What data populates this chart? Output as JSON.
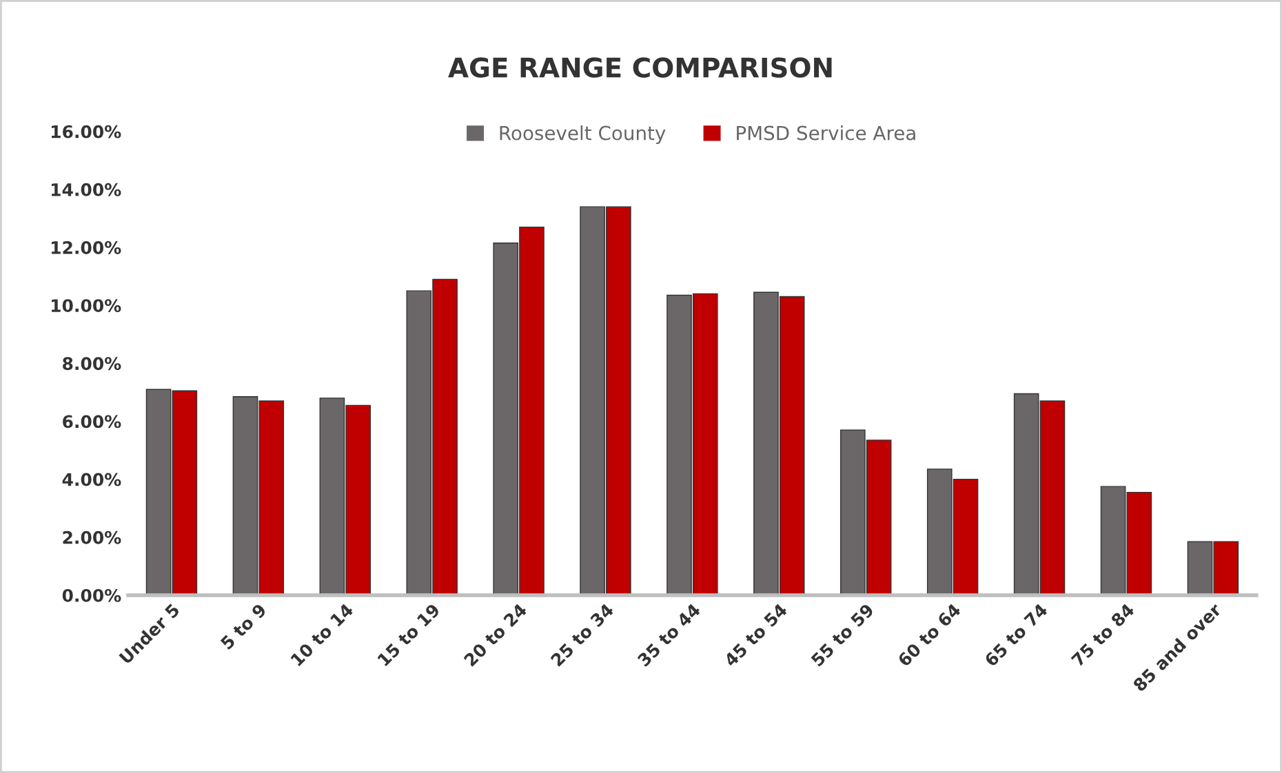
{
  "chart_data": {
    "type": "bar",
    "title": "AGE RANGE COMPARISON",
    "categories": [
      "Under 5",
      "5 to 9",
      "10 to 14",
      "15 to 19",
      "20 to 24",
      "25 to 34",
      "35 to 44",
      "45 to 54",
      "55 to 59",
      "60 to 64",
      "65 to 74",
      "75 to 84",
      "85 and over"
    ],
    "series": [
      {
        "name": "Roosevelt County",
        "color": "#6b6769",
        "values": [
          7.1,
          6.85,
          6.8,
          10.5,
          12.15,
          13.4,
          10.35,
          10.45,
          5.7,
          4.35,
          6.95,
          3.75,
          1.85
        ]
      },
      {
        "name": "PMSD Service Area",
        "color": "#c00000",
        "values": [
          7.05,
          6.7,
          6.55,
          10.9,
          12.7,
          13.4,
          10.4,
          10.3,
          5.35,
          4.0,
          6.7,
          3.55,
          1.85
        ]
      }
    ],
    "ylim": [
      0,
      16
    ],
    "yticks": [
      {
        "value": 0,
        "label": "0.00%"
      },
      {
        "value": 2,
        "label": "2.00%"
      },
      {
        "value": 4,
        "label": "4.00%"
      },
      {
        "value": 6,
        "label": "6.00%"
      },
      {
        "value": 8,
        "label": "8.00%"
      },
      {
        "value": 10,
        "label": "10.00%"
      },
      {
        "value": 12,
        "label": "12.00%"
      },
      {
        "value": 14,
        "label": "14.00%"
      },
      {
        "value": 16,
        "label": "16.00%"
      }
    ],
    "grid": false,
    "legend": "top"
  }
}
